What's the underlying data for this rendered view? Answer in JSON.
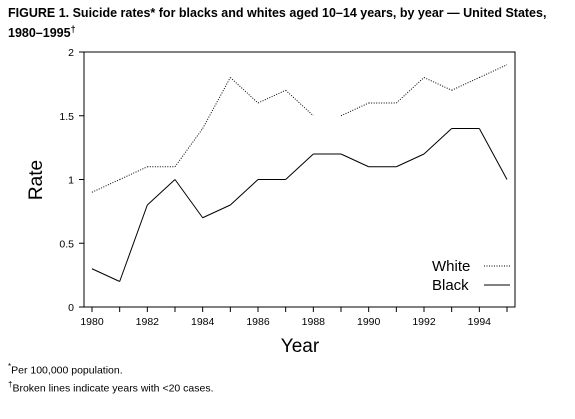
{
  "figure": {
    "title_main": "FIGURE 1. Suicide rates",
    "title_mark1": "*",
    "title_mid": " for blacks and whites aged 10–14 years, by year — United States, 1980–1995",
    "title_mark2": "†"
  },
  "chart_data": {
    "type": "line",
    "xlabel": "Year",
    "ylabel": "Rate",
    "xlim": [
      1980,
      1995
    ],
    "ylim": [
      0,
      2
    ],
    "x_ticks": [
      1980,
      1981,
      1982,
      1983,
      1984,
      1985,
      1986,
      1987,
      1988,
      1989,
      1990,
      1991,
      1992,
      1993,
      1994,
      1995
    ],
    "x_tick_labels": [
      "1980",
      "1982",
      "1984",
      "1986",
      "1988",
      "1990",
      "1992",
      "1994"
    ],
    "y_ticks": [
      0,
      0.5,
      1,
      1.5,
      2
    ],
    "y_tick_labels": [
      "0",
      "0.5",
      "1",
      "1.5",
      "2"
    ],
    "legend_position": "bottom-right",
    "grid": false,
    "series": [
      {
        "name": "White",
        "style": "dotted",
        "x": [
          1980,
          1981,
          1982,
          1983,
          1984,
          1985,
          1986,
          1987,
          1988,
          1989,
          1990,
          1991,
          1992,
          1993,
          1994,
          1995
        ],
        "values": [
          0.9,
          1.0,
          1.1,
          1.1,
          1.4,
          1.8,
          1.6,
          1.7,
          1.5,
          1.5,
          1.6,
          1.6,
          1.8,
          1.7,
          1.8,
          1.9
        ],
        "gaps_after": [
          1988
        ]
      },
      {
        "name": "Black",
        "style": "solid",
        "x": [
          1980,
          1981,
          1982,
          1983,
          1984,
          1985,
          1986,
          1987,
          1988,
          1989,
          1990,
          1991,
          1992,
          1993,
          1994,
          1995
        ],
        "values": [
          0.3,
          0.2,
          0.8,
          1.0,
          0.7,
          0.8,
          1.0,
          1.0,
          1.2,
          1.2,
          1.1,
          1.1,
          1.2,
          1.4,
          1.4,
          1.0
        ],
        "broken_segments": [
          [
            1980,
            1981
          ],
          [
            1981,
            1982
          ],
          [
            1982,
            1983
          ]
        ]
      }
    ]
  },
  "footnotes": [
    {
      "mark": "*",
      "text": "Per 100,000 population."
    },
    {
      "mark": "†",
      "text": "Broken lines indicate years with <20 cases."
    }
  ]
}
